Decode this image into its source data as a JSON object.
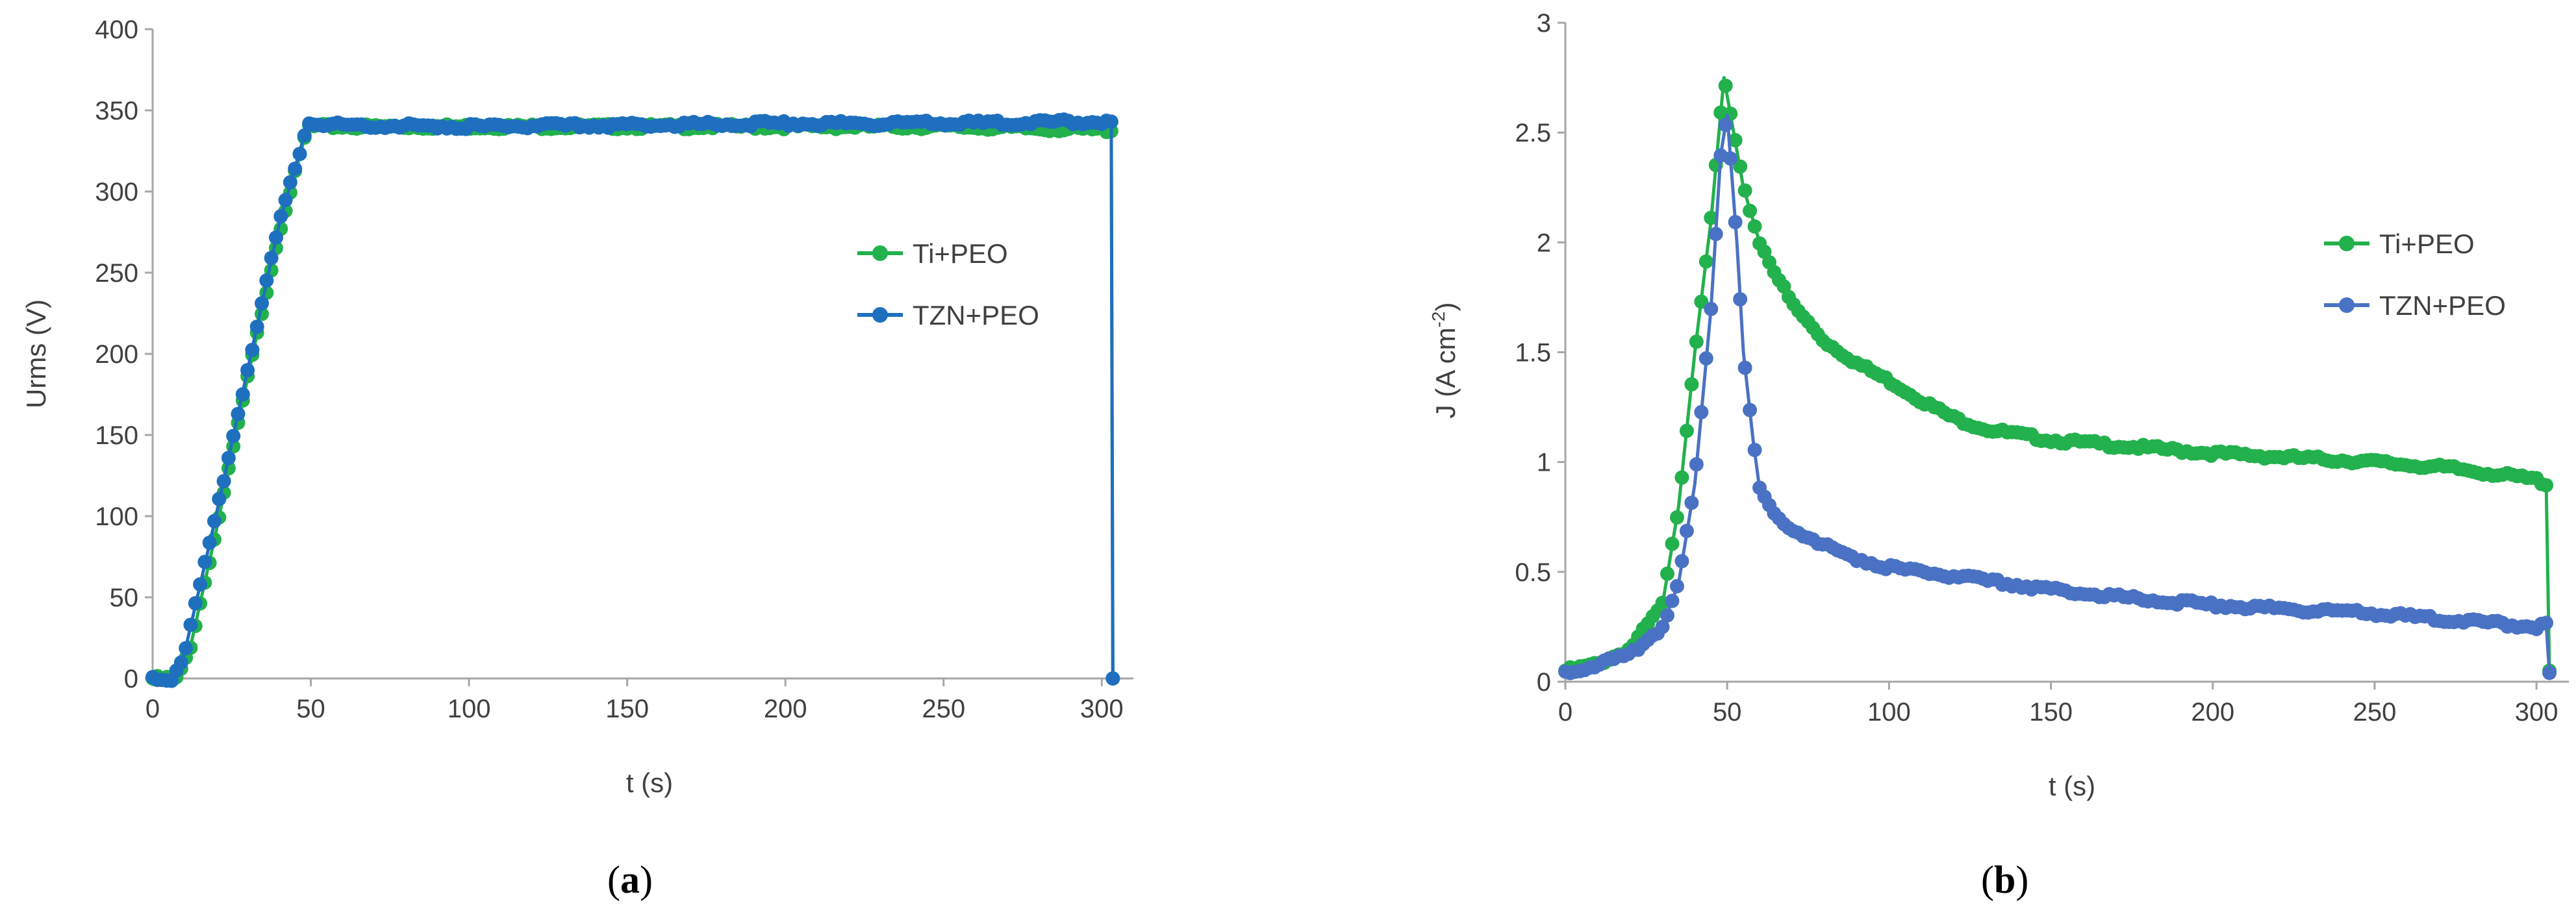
{
  "chart_data": [
    {
      "type": "scatter",
      "title": "",
      "panel_label": {
        "open": "(",
        "letter": "a",
        "close": ")"
      },
      "xlabel": "t (s)",
      "ylabel": "Urms (V)",
      "xlim": [
        0,
        310
      ],
      "ylim": [
        0,
        400
      ],
      "xticks": [
        "0",
        "50",
        "100",
        "150",
        "200",
        "250",
        "300"
      ],
      "yticks": [
        "0",
        "50",
        "100",
        "150",
        "200",
        "250",
        "300",
        "350",
        "400"
      ],
      "legend": [
        "Ti+PEO",
        "TZN+PEO"
      ],
      "series": [
        {
          "name": "Ti+PEO",
          "color": "#22b14c",
          "x": [
            0,
            8,
            12,
            20,
            30,
            40,
            49,
            60,
            100,
            150,
            200,
            250,
            300,
            303,
            303.5
          ],
          "y": [
            0,
            0,
            20,
            90,
            185,
            275,
            340,
            340,
            340,
            340,
            340,
            340,
            338,
            338,
            0
          ]
        },
        {
          "name": "TZN+PEO",
          "color": "#1f6fbf",
          "x": [
            0,
            6,
            10,
            20,
            30,
            40,
            49,
            60,
            100,
            150,
            200,
            250,
            300,
            303,
            303.5
          ],
          "y": [
            0,
            0,
            15,
            100,
            190,
            280,
            342,
            341,
            340,
            341,
            342,
            342,
            343,
            342,
            0
          ]
        }
      ]
    },
    {
      "type": "scatter",
      "title": "",
      "panel_label": {
        "open": "(",
        "letter": "b",
        "close": ")"
      },
      "xlabel": "t (s)",
      "ylabel": "J (A cm",
      "ylabel_sup": "-2",
      "ylabel_close": ")",
      "xlim": [
        0,
        310
      ],
      "ylim": [
        0,
        3
      ],
      "xticks": [
        "0",
        "50",
        "100",
        "150",
        "200",
        "250",
        "300"
      ],
      "yticks": [
        "0",
        "0.5",
        "1",
        "1.5",
        "2",
        "2.5",
        "3"
      ],
      "legend": [
        "Ti+PEO",
        "TZN+PEO"
      ],
      "series": [
        {
          "name": "Ti+PEO",
          "color": "#22b14c",
          "x": [
            0,
            10,
            20,
            30,
            35,
            40,
            45,
            49,
            52,
            55,
            60,
            70,
            80,
            90,
            100,
            110,
            120,
            130,
            150,
            175,
            200,
            225,
            250,
            275,
            300,
            303,
            304
          ],
          "y": [
            0.05,
            0.08,
            0.15,
            0.35,
            0.8,
            1.5,
            2.1,
            2.75,
            2.5,
            2.25,
            2.0,
            1.72,
            1.55,
            1.45,
            1.37,
            1.28,
            1.2,
            1.15,
            1.1,
            1.07,
            1.04,
            1.02,
            1.0,
            0.97,
            0.92,
            0.9,
            0.05
          ]
        },
        {
          "name": "TZN+PEO",
          "color": "#4a72c4",
          "x": [
            0,
            10,
            20,
            30,
            35,
            40,
            45,
            48,
            50,
            53,
            55,
            58,
            60,
            65,
            70,
            80,
            90,
            100,
            120,
            150,
            175,
            200,
            225,
            250,
            275,
            300,
            303,
            304
          ],
          "y": [
            0.04,
            0.08,
            0.12,
            0.25,
            0.45,
            0.9,
            1.7,
            2.4,
            2.58,
            2.0,
            1.5,
            1.1,
            0.88,
            0.75,
            0.7,
            0.62,
            0.56,
            0.52,
            0.48,
            0.42,
            0.38,
            0.35,
            0.33,
            0.31,
            0.28,
            0.25,
            0.26,
            0.04
          ]
        }
      ]
    }
  ]
}
